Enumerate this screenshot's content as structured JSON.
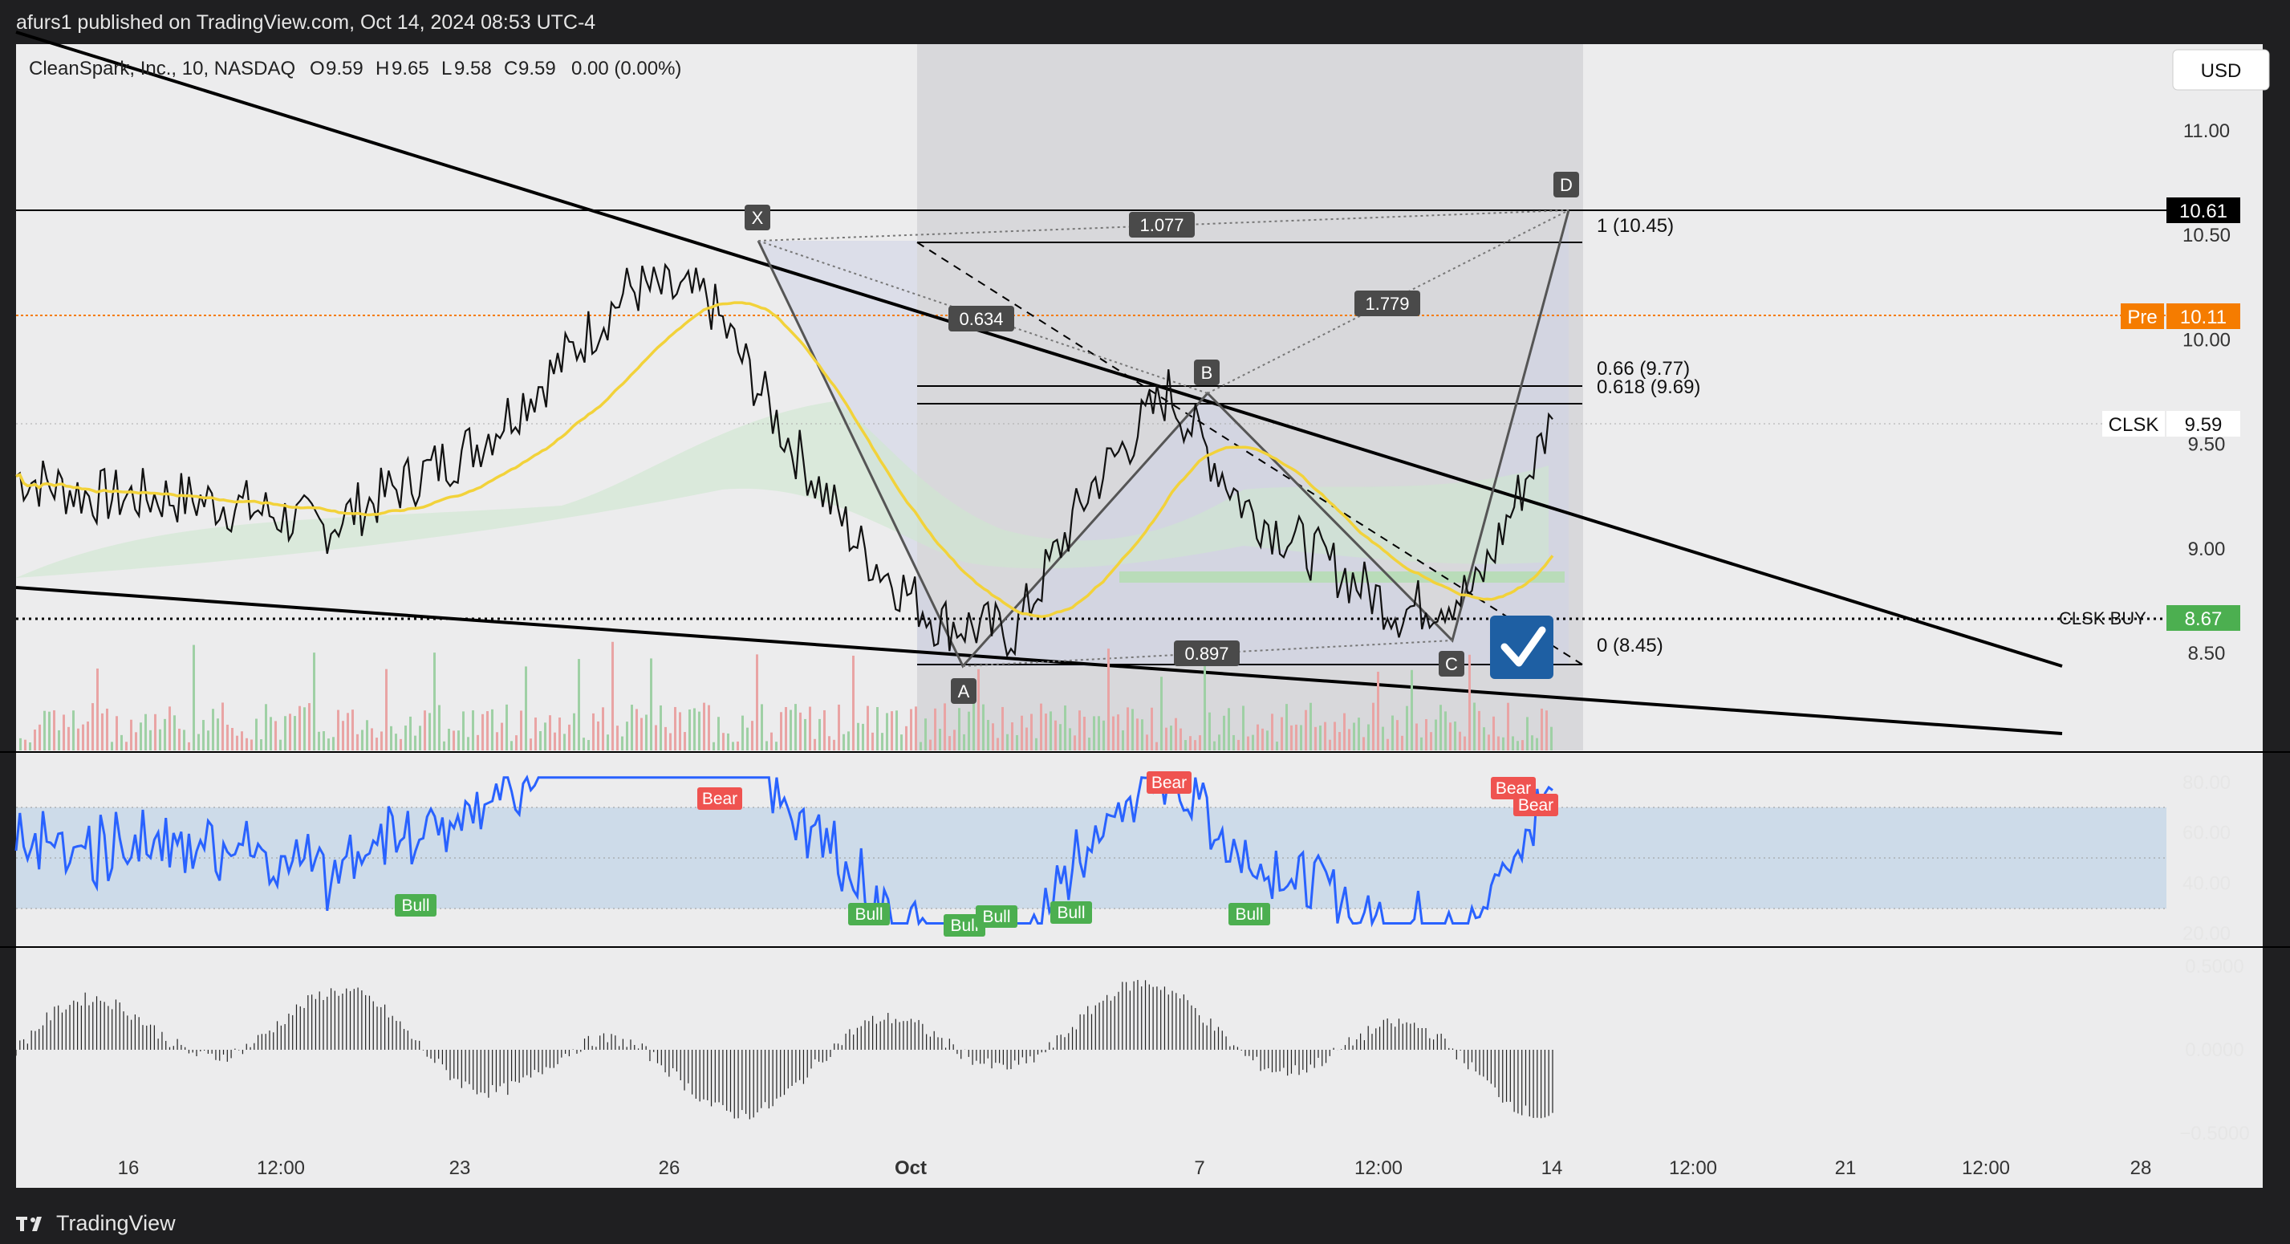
{
  "header": {
    "published": "afurs1 published on TradingView.com, Oct 14, 2024 08:53 UTC-4"
  },
  "footer": {
    "brand": "TradingView"
  },
  "symbol_bar": {
    "name": "CleanSpark, Inc., 10, NASDAQ",
    "o_label": "O",
    "o": "9.59",
    "h_label": "H",
    "h": "9.65",
    "l_label": "L",
    "l": "9.58",
    "c_label": "C",
    "c": "9.59",
    "change": "0.00 (0.00%)"
  },
  "currency": "USD",
  "price_axis": {
    "ticks": [
      "11.00",
      "10.50",
      "10.00",
      "9.50",
      "9.00",
      "8.50"
    ],
    "values": [
      11.0,
      10.5,
      10.0,
      9.5,
      9.0,
      8.5
    ]
  },
  "labels": {
    "hline": {
      "price": "10.61",
      "color": "#000000"
    },
    "pre": {
      "tag": "Pre",
      "price": "10.11",
      "color": "#f57c00"
    },
    "clsk": {
      "tag": "CLSK",
      "price": "9.59"
    },
    "buy": {
      "tag": "CLSK BUY",
      "price": "8.67",
      "color": "#4caf50"
    }
  },
  "time_axis": [
    "16",
    "12:00",
    "23",
    "26",
    "Oct",
    "7",
    "12:00",
    "14",
    "12:00",
    "21",
    "12:00",
    "28"
  ],
  "pattern": {
    "points": [
      "X",
      "A",
      "B",
      "C",
      "D"
    ],
    "ratios": [
      "1.077",
      "0.634",
      "1.779",
      "0.897"
    ],
    "fib_levels": [
      "1 (10.45)",
      "0.66 (9.77)",
      "0.618 (9.69)",
      "0 (8.45)"
    ]
  },
  "rsi": {
    "ticks": [
      "80.00",
      "60.00",
      "40.00",
      "20.00"
    ],
    "bull_labels": [
      "Bull",
      "Bull",
      "Bull",
      "Bull",
      "Bull",
      "Bull"
    ],
    "bear_labels": [
      "Bear",
      "Bear",
      "Bear",
      "Bear"
    ]
  },
  "oscillator": {
    "ticks": [
      "0.5000",
      "0.0000",
      "−0.5000"
    ]
  },
  "chart_data": {
    "type": "line",
    "title": "CleanSpark, Inc., 10, NASDAQ",
    "xlabel": "",
    "ylabel": "",
    "ylim": [
      8.0,
      11.3
    ],
    "grid": false,
    "x_ticks": [
      "16",
      "12:00",
      "23",
      "26",
      "Oct",
      "7",
      "12:00",
      "14",
      "12:00",
      "21",
      "12:00",
      "28"
    ],
    "series": [
      {
        "name": "CLSK",
        "x_index": [
          0,
          5,
          10,
          15,
          20,
          25,
          30,
          35,
          40,
          45,
          50,
          55,
          60,
          65,
          70,
          75,
          80,
          85,
          90,
          95,
          100
        ],
        "values": [
          9.35,
          9.25,
          9.25,
          9.2,
          9.1,
          9.3,
          9.5,
          9.85,
          10.25,
          10.2,
          9.55,
          9.0,
          8.65,
          8.6,
          9.3,
          9.75,
          9.2,
          8.95,
          8.7,
          8.8,
          9.62
        ]
      }
    ],
    "harmonic_pattern": {
      "X": 10.45,
      "A": 8.45,
      "B": 9.72,
      "C": 8.55,
      "D": 10.61
    },
    "rsi_range": [
      20,
      80
    ],
    "oscillator_range": [
      -0.5,
      0.5
    ]
  }
}
